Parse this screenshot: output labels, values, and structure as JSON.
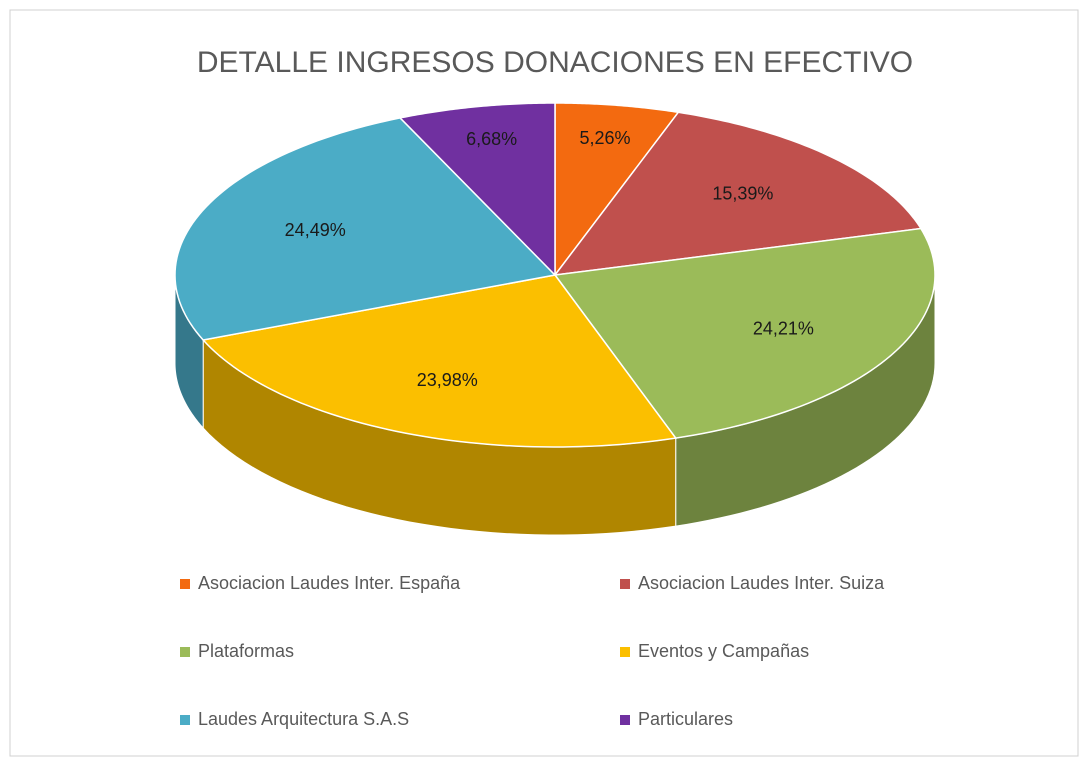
{
  "chart_data": {
    "type": "pie",
    "title": "DETALLE INGRESOS DONACIONES EN EFECTIVO",
    "categories": [
      "Asociacion Laudes Inter. España",
      "Asociacion Laudes Inter. Suiza",
      "Plataformas",
      "Eventos y Campañas",
      "Laudes Arquitectura S.A.S",
      "Particulares"
    ],
    "values": [
      5.26,
      15.39,
      24.21,
      23.98,
      24.49,
      6.68
    ],
    "value_labels": [
      "5,26%",
      "15,39%",
      "24,21%",
      "23,98%",
      "24,49%",
      "6,68%"
    ],
    "colors": [
      "#f36a10",
      "#c0504d",
      "#9bbb59",
      "#fbbf00",
      "#4bacc6",
      "#7030a0"
    ],
    "legend": "bottom"
  }
}
